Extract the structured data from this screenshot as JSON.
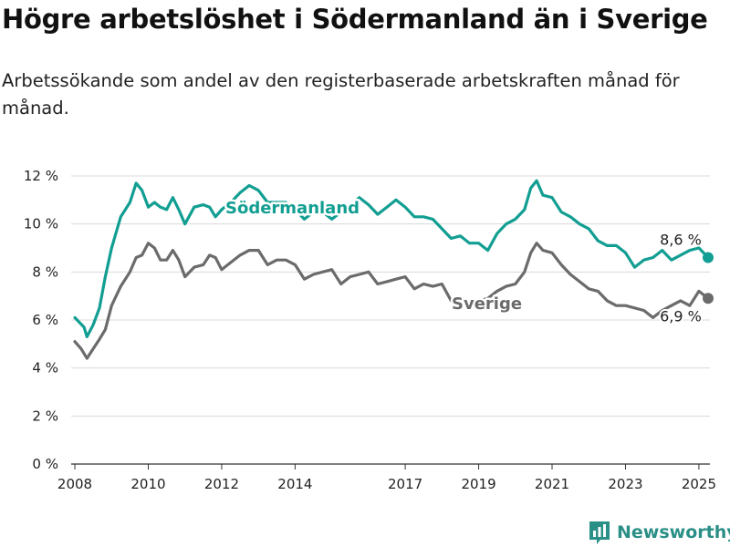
{
  "header": {
    "title": "Högre arbetslöshet i Södermanland än i Sverige",
    "subtitle": "Arbetssökande som andel av den registerbaserade arbetskraften månad för månad."
  },
  "brand": {
    "name": "Newsworthy"
  },
  "colors": {
    "sodermanland": "#129e92",
    "sverige": "#6b6b6b",
    "grid": "#d9d9d9"
  },
  "chart_data": {
    "type": "line",
    "title": "Högre arbetslöshet i Södermanland än i Sverige",
    "subtitle": "Arbetssökande som andel av den registerbaserade arbetskraften månad för månad.",
    "xlim": [
      2007.9,
      2025.3
    ],
    "ylim": [
      0,
      12
    ],
    "grid": true,
    "x_ticks": [
      2008,
      2010,
      2012,
      2014,
      2017,
      2019,
      2021,
      2023,
      2025
    ],
    "y_ticks": [
      0,
      2,
      4,
      6,
      8,
      10,
      12
    ],
    "y_tick_labels": [
      "0 %",
      "2 %",
      "4 %",
      "6 %",
      "8 %",
      "10 %",
      "12 %"
    ],
    "series": [
      {
        "name": "Södermanland",
        "end_label": "8,6 %",
        "x": [
          2008.0,
          2008.25,
          2008.33,
          2008.5,
          2008.67,
          2008.83,
          2009.0,
          2009.25,
          2009.5,
          2009.67,
          2009.83,
          2010.0,
          2010.17,
          2010.33,
          2010.5,
          2010.67,
          2010.83,
          2011.0,
          2011.25,
          2011.5,
          2011.67,
          2011.83,
          2012.0,
          2012.25,
          2012.5,
          2012.75,
          2013.0,
          2013.25,
          2013.5,
          2013.75,
          2014.0,
          2014.25,
          2014.5,
          2014.75,
          2015.0,
          2015.25,
          2015.5,
          2015.75,
          2016.0,
          2016.25,
          2016.5,
          2016.75,
          2017.0,
          2017.25,
          2017.5,
          2017.75,
          2018.0,
          2018.25,
          2018.5,
          2018.75,
          2019.0,
          2019.25,
          2019.5,
          2019.75,
          2020.0,
          2020.25,
          2020.42,
          2020.58,
          2020.75,
          2021.0,
          2021.25,
          2021.5,
          2021.75,
          2022.0,
          2022.25,
          2022.5,
          2022.75,
          2023.0,
          2023.25,
          2023.5,
          2023.75,
          2024.0,
          2024.25,
          2024.5,
          2024.75,
          2025.0,
          2025.25
        ],
        "y": [
          6.1,
          5.7,
          5.3,
          5.8,
          6.5,
          7.8,
          9.0,
          10.3,
          10.9,
          11.7,
          11.4,
          10.7,
          10.9,
          10.7,
          10.6,
          11.1,
          10.6,
          10.0,
          10.7,
          10.8,
          10.7,
          10.3,
          10.6,
          10.9,
          11.3,
          11.6,
          11.4,
          10.9,
          10.9,
          10.9,
          10.6,
          10.2,
          10.5,
          10.5,
          10.2,
          10.5,
          10.7,
          11.1,
          10.8,
          10.4,
          10.7,
          11.0,
          10.7,
          10.3,
          10.3,
          10.2,
          9.8,
          9.4,
          9.5,
          9.2,
          9.2,
          8.9,
          9.6,
          10.0,
          10.2,
          10.6,
          11.5,
          11.8,
          11.2,
          11.1,
          10.5,
          10.3,
          10.0,
          9.8,
          9.3,
          9.1,
          9.1,
          8.8,
          8.2,
          8.5,
          8.6,
          8.9,
          8.5,
          8.7,
          8.9,
          9.0,
          8.6
        ]
      },
      {
        "name": "Sverige",
        "end_label": "6,9 %",
        "x": [
          2008.0,
          2008.17,
          2008.33,
          2008.5,
          2008.67,
          2008.83,
          2009.0,
          2009.25,
          2009.5,
          2009.67,
          2009.83,
          2010.0,
          2010.17,
          2010.33,
          2010.5,
          2010.67,
          2010.83,
          2011.0,
          2011.25,
          2011.5,
          2011.67,
          2011.83,
          2012.0,
          2012.25,
          2012.5,
          2012.75,
          2013.0,
          2013.25,
          2013.5,
          2013.75,
          2014.0,
          2014.25,
          2014.5,
          2014.75,
          2015.0,
          2015.25,
          2015.5,
          2015.75,
          2016.0,
          2016.25,
          2016.5,
          2016.75,
          2017.0,
          2017.25,
          2017.5,
          2017.75,
          2018.0,
          2018.25,
          2018.5,
          2018.75,
          2019.0,
          2019.25,
          2019.5,
          2019.75,
          2020.0,
          2020.25,
          2020.42,
          2020.58,
          2020.75,
          2021.0,
          2021.25,
          2021.5,
          2021.75,
          2022.0,
          2022.25,
          2022.5,
          2022.75,
          2023.0,
          2023.25,
          2023.5,
          2023.75,
          2024.0,
          2024.25,
          2024.5,
          2024.75,
          2025.0,
          2025.25
        ],
        "y": [
          5.1,
          4.8,
          4.4,
          4.8,
          5.2,
          5.6,
          6.6,
          7.4,
          8.0,
          8.6,
          8.7,
          9.2,
          9.0,
          8.5,
          8.5,
          8.9,
          8.5,
          7.8,
          8.2,
          8.3,
          8.7,
          8.6,
          8.1,
          8.4,
          8.7,
          8.9,
          8.9,
          8.3,
          8.5,
          8.5,
          8.3,
          7.7,
          7.9,
          8.0,
          8.1,
          7.5,
          7.8,
          7.9,
          8.0,
          7.5,
          7.6,
          7.7,
          7.8,
          7.3,
          7.5,
          7.4,
          7.5,
          6.8,
          6.8,
          6.8,
          6.8,
          6.9,
          7.2,
          7.4,
          7.5,
          8.0,
          8.8,
          9.2,
          8.9,
          8.8,
          8.3,
          7.9,
          7.6,
          7.3,
          7.2,
          6.8,
          6.6,
          6.6,
          6.5,
          6.4,
          6.1,
          6.4,
          6.6,
          6.8,
          6.6,
          7.2,
          6.9
        ]
      }
    ]
  }
}
